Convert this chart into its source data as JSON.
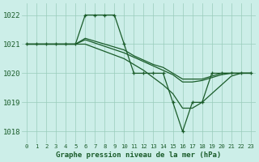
{
  "title": "Graphe pression niveau de la mer (hPa)",
  "x_labels": [
    "0",
    "1",
    "2",
    "3",
    "4",
    "5",
    "6",
    "7",
    "8",
    "9",
    "10",
    "11",
    "12",
    "13",
    "14",
    "15",
    "16",
    "17",
    "18",
    "19",
    "20",
    "21",
    "22",
    "23"
  ],
  "ylim": [
    1017.6,
    1022.4
  ],
  "yticks": [
    1018,
    1019,
    1020,
    1021,
    1022
  ],
  "background_color": "#cceee8",
  "grid_color": "#99ccbb",
  "line_color": "#1a5c2a",
  "series": [
    {
      "x": [
        0,
        1,
        2,
        3,
        4,
        5,
        6,
        7,
        8,
        9,
        10,
        11,
        12,
        13,
        14,
        15,
        16,
        17,
        18,
        19,
        20,
        21,
        22,
        23
      ],
      "y": [
        1021,
        1021,
        1021,
        1021,
        1021,
        1021,
        1022,
        1022,
        1022,
        1022,
        1021,
        1020,
        1020,
        1020,
        1020,
        1019,
        1018,
        1019,
        1019,
        1020,
        1020,
        1020,
        1020,
        1020
      ],
      "marker": "+"
    },
    {
      "x": [
        0,
        3,
        5,
        6,
        10,
        11,
        12,
        13,
        14,
        15,
        16,
        17,
        18,
        19,
        20,
        21,
        22,
        23
      ],
      "y": [
        1021,
        1021,
        1021,
        1021.2,
        1020.8,
        1020.6,
        1020.45,
        1020.3,
        1020.2,
        1020.0,
        1019.8,
        1019.8,
        1019.8,
        1019.9,
        1020.0,
        1020.0,
        1020.0,
        1020.0
      ],
      "marker": null
    },
    {
      "x": [
        0,
        3,
        5,
        6,
        10,
        11,
        12,
        13,
        14,
        15,
        16,
        17,
        18,
        19,
        20,
        21,
        22,
        23
      ],
      "y": [
        1021,
        1021,
        1021,
        1021.15,
        1020.7,
        1020.55,
        1020.4,
        1020.25,
        1020.1,
        1019.95,
        1019.7,
        1019.7,
        1019.75,
        1019.85,
        1019.95,
        1020.0,
        1020.0,
        1020.0
      ],
      "marker": null
    },
    {
      "x": [
        0,
        3,
        5,
        6,
        10,
        11,
        12,
        13,
        14,
        15,
        16,
        17,
        18,
        19,
        20,
        21,
        22,
        23
      ],
      "y": [
        1021,
        1021,
        1021,
        1021.0,
        1020.5,
        1020.3,
        1020.1,
        1019.85,
        1019.6,
        1019.3,
        1018.8,
        1018.8,
        1019.0,
        1019.3,
        1019.6,
        1019.9,
        1020.0,
        1020.0
      ],
      "marker": null
    }
  ]
}
